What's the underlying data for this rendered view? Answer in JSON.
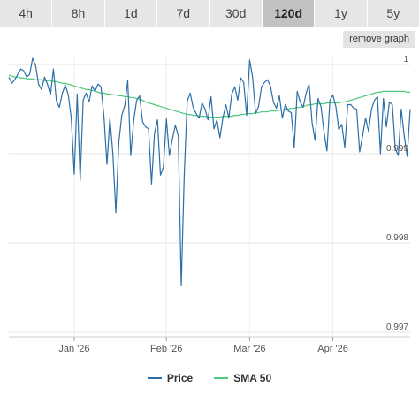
{
  "tabs": [
    {
      "label": "4h",
      "active": false
    },
    {
      "label": "8h",
      "active": false
    },
    {
      "label": "1d",
      "active": false
    },
    {
      "label": "7d",
      "active": false
    },
    {
      "label": "30d",
      "active": false
    },
    {
      "label": "120d",
      "active": true
    },
    {
      "label": "1y",
      "active": false
    },
    {
      "label": "5y",
      "active": false
    }
  ],
  "remove_graph_label": "remove graph",
  "colors": {
    "price": "#2b6ea8",
    "sma": "#4cc97a",
    "grid": "#e6e6e6"
  },
  "chart_data": {
    "type": "line",
    "xlabel": "",
    "ylabel": "",
    "x_ticks": [
      "Jan '26",
      "Feb '26",
      "Mar '26",
      "Apr '26"
    ],
    "x_tick_index": [
      22,
      53,
      81,
      109
    ],
    "y_ticks": [
      0.997,
      0.998,
      0.999,
      1
    ],
    "ylim": [
      0.99695,
      1.00008
    ],
    "legend_position": "bottom-center",
    "grid": true,
    "series": [
      {
        "name": "Price",
        "values": [
          0.99986,
          0.99979,
          0.99983,
          0.99989,
          0.99995,
          0.99993,
          0.99986,
          0.99989,
          1.00007,
          0.99999,
          0.99978,
          0.99972,
          0.99986,
          0.99978,
          0.99966,
          0.99995,
          0.99959,
          0.99952,
          0.99968,
          0.99977,
          0.99966,
          0.9994,
          0.99877,
          0.99967,
          0.9987,
          0.9996,
          0.99968,
          0.99958,
          0.99976,
          0.9997,
          0.99978,
          0.99975,
          0.99942,
          0.99888,
          0.9994,
          0.999,
          0.99834,
          0.99913,
          0.99943,
          0.99954,
          0.99982,
          0.99898,
          0.99937,
          0.9996,
          0.99965,
          0.99936,
          0.9993,
          0.99928,
          0.99866,
          0.99923,
          0.99938,
          0.99876,
          0.99885,
          0.99939,
          0.99898,
          0.99916,
          0.99932,
          0.9992,
          0.99752,
          0.99876,
          0.99959,
          0.99968,
          0.99952,
          0.99945,
          0.9994,
          0.99957,
          0.9995,
          0.99938,
          0.99964,
          0.99928,
          0.99938,
          0.99918,
          0.9994,
          0.99955,
          0.9994,
          0.99967,
          0.99975,
          0.9996,
          0.99985,
          0.9998,
          0.99943,
          1.00005,
          0.99986,
          0.99945,
          0.99953,
          0.99975,
          0.9998,
          0.99983,
          0.99976,
          0.99958,
          0.99951,
          0.99965,
          0.9994,
          0.99955,
          0.99948,
          0.99946,
          0.99907,
          0.9997,
          0.99958,
          0.99952,
          0.99968,
          0.99978,
          0.99935,
          0.99915,
          0.99962,
          0.99953,
          0.99925,
          0.99903,
          0.9996,
          0.99966,
          0.99953,
          0.99927,
          0.99933,
          0.99907,
          0.99955,
          0.99955,
          0.99951,
          0.9995,
          0.99902,
          0.9992,
          0.9994,
          0.99925,
          0.9995,
          0.9996,
          0.99964,
          0.999,
          0.99962,
          0.9993,
          0.99958,
          0.99955,
          0.99905,
          0.99898,
          0.9995,
          0.9992,
          0.99897,
          0.9995
        ],
        "color": "#2b6ea8"
      },
      {
        "name": "SMA 50",
        "values": [
          0.99988,
          0.99987,
          0.99986,
          0.99986,
          0.99985,
          0.99985,
          0.99984,
          0.99984,
          0.99984,
          0.99983,
          0.99983,
          0.99983,
          0.99982,
          0.99982,
          0.99982,
          0.99981,
          0.99981,
          0.9998,
          0.99979,
          0.99979,
          0.99978,
          0.99977,
          0.99976,
          0.99975,
          0.99974,
          0.99973,
          0.99972,
          0.99972,
          0.99971,
          0.9997,
          0.99969,
          0.99968,
          0.99968,
          0.99967,
          0.99967,
          0.99966,
          0.99966,
          0.99965,
          0.99965,
          0.99964,
          0.99964,
          0.99963,
          0.99963,
          0.99962,
          0.99961,
          0.9996,
          0.99958,
          0.99957,
          0.99956,
          0.99955,
          0.99954,
          0.99953,
          0.99952,
          0.99951,
          0.9995,
          0.99949,
          0.99948,
          0.99947,
          0.99946,
          0.99945,
          0.99944,
          0.99944,
          0.99943,
          0.99943,
          0.99942,
          0.99942,
          0.99942,
          0.99941,
          0.99941,
          0.99941,
          0.99941,
          0.99941,
          0.99942,
          0.99942,
          0.99942,
          0.99942,
          0.99943,
          0.99943,
          0.99944,
          0.99944,
          0.99945,
          0.99945,
          0.99945,
          0.99946,
          0.99946,
          0.99947,
          0.99947,
          0.99947,
          0.99948,
          0.99948,
          0.99948,
          0.99949,
          0.99949,
          0.9995,
          0.9995,
          0.99951,
          0.99951,
          0.99952,
          0.99952,
          0.99953,
          0.99954,
          0.99955,
          0.99955,
          0.99956,
          0.99956,
          0.99956,
          0.99956,
          0.99957,
          0.99957,
          0.99957,
          0.99957,
          0.99957,
          0.99958,
          0.99958,
          0.99959,
          0.9996,
          0.99961,
          0.99962,
          0.99963,
          0.99964,
          0.99965,
          0.99966,
          0.99967,
          0.99968,
          0.99969,
          0.99969,
          0.9997,
          0.9997,
          0.9997,
          0.9997,
          0.9997,
          0.9997,
          0.9997,
          0.9997,
          0.99969,
          0.99969
        ],
        "color": "#4cc97a"
      }
    ]
  }
}
